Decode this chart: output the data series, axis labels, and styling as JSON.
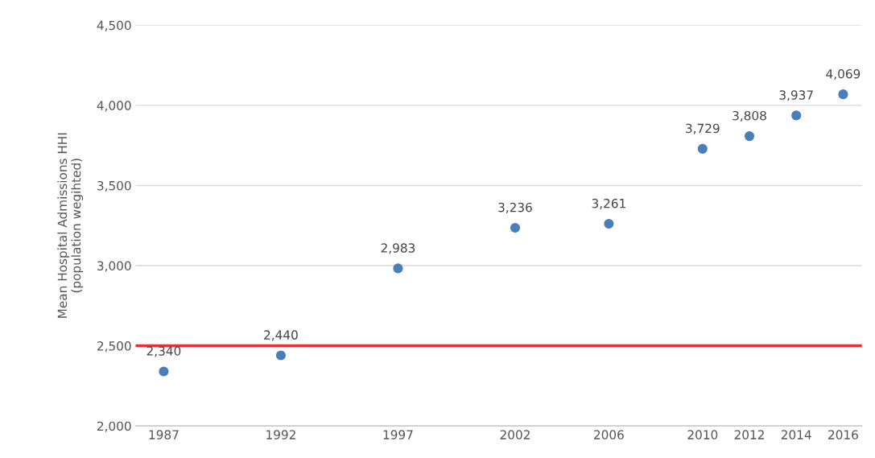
{
  "chart_data": {
    "type": "scatter",
    "ylabel": "Mean Hospital Admissions HHI\n(population wegihted)",
    "x": [
      1987,
      1992,
      1997,
      2002,
      2006,
      2010,
      2012,
      2014,
      2016
    ],
    "series": [
      {
        "color": "#4a7ebb",
        "values": [
          2340,
          2440,
          2983,
          3236,
          3261,
          3729,
          3808,
          3937,
          4069
        ],
        "value_labels": [
          "2,340",
          "2,440",
          "2,983",
          "3,236",
          "3,261",
          "3,729",
          "3,808",
          "3,937",
          "4,069"
        ]
      }
    ],
    "marker": "circle",
    "xlim": [
      1985.8,
      2016.8
    ],
    "xticks": [
      1987,
      1992,
      1997,
      2002,
      2006,
      2010,
      2012,
      2014,
      2016
    ],
    "ylim": [
      2000,
      4500
    ],
    "yticks": [
      {
        "value": 2000,
        "label": "2,000"
      },
      {
        "value": 2500,
        "label": "2,500"
      },
      {
        "value": 3000,
        "label": "3,000"
      },
      {
        "value": 3500,
        "label": "3,500"
      },
      {
        "value": 4000,
        "label": "4,000"
      },
      {
        "value": 4500,
        "label": "4,500"
      }
    ],
    "ref_lines": [
      {
        "axis": "y",
        "value": 2500,
        "color": "#e8303a",
        "line_style": "solid"
      }
    ],
    "grid": "y",
    "legend": false
  }
}
